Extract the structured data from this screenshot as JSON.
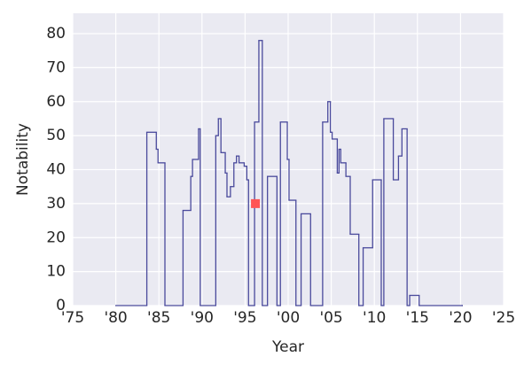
{
  "chart_data": {
    "type": "step",
    "x_label": "Year",
    "y_label": "Notability",
    "xlim": [
      1975,
      2025
    ],
    "ylim": [
      0,
      86
    ],
    "xticks": [
      {
        "value": 1975,
        "label": "'75"
      },
      {
        "value": 1980,
        "label": "'80"
      },
      {
        "value": 1985,
        "label": "'85"
      },
      {
        "value": 1990,
        "label": "'90"
      },
      {
        "value": 1995,
        "label": "'95"
      },
      {
        "value": 2000,
        "label": "'00"
      },
      {
        "value": 2005,
        "label": "'05"
      },
      {
        "value": 2010,
        "label": "'10"
      },
      {
        "value": 2015,
        "label": "'15"
      },
      {
        "value": 2020,
        "label": "'20"
      },
      {
        "value": 2025,
        "label": "'25"
      }
    ],
    "yticks": [
      0,
      10,
      20,
      30,
      40,
      50,
      60,
      70,
      80
    ],
    "grid": true,
    "background": "#eaeaf2",
    "series": [
      {
        "color": "#4a4a9c",
        "x": [
          1980,
          1983.6,
          1984.7,
          1984.9,
          1985.7,
          1987.8,
          1988.7,
          1988.9,
          1989.6,
          1989.8,
          1991.6,
          1991.9,
          1992.2,
          1992.7,
          1992.9,
          1993.3,
          1993.7,
          1994.0,
          1994.3,
          1994.9,
          1995.2,
          1995.4,
          1996.1,
          1996.6,
          1997.0,
          1997.6,
          1998.7,
          1999.1,
          1999.9,
          2000.1,
          2000.9,
          2001.5,
          2002.6,
          2004.0,
          2004.6,
          2004.9,
          2005.1,
          2005.7,
          2005.9,
          2006.1,
          2006.7,
          2007.2,
          2008.2,
          2008.7,
          2009.8,
          2010.8,
          2011.1,
          2012.2,
          2012.8,
          2013.2,
          2013.8,
          2014.1,
          2015.2,
          2020.2
        ],
        "values": [
          0,
          51,
          46,
          42,
          0,
          28,
          38,
          43,
          52,
          0,
          50,
          55,
          45,
          39,
          32,
          35,
          42,
          44,
          42,
          41,
          37,
          0,
          54,
          78,
          0,
          38,
          0,
          54,
          43,
          31,
          0,
          27,
          0,
          54,
          60,
          51,
          49,
          39,
          46,
          42,
          38,
          21,
          0,
          17,
          37,
          0,
          55,
          37,
          44,
          52,
          0,
          3,
          0,
          0
        ]
      }
    ],
    "highlight": {
      "x": 1996.2,
      "y": 30,
      "color": "#ff5555"
    }
  }
}
